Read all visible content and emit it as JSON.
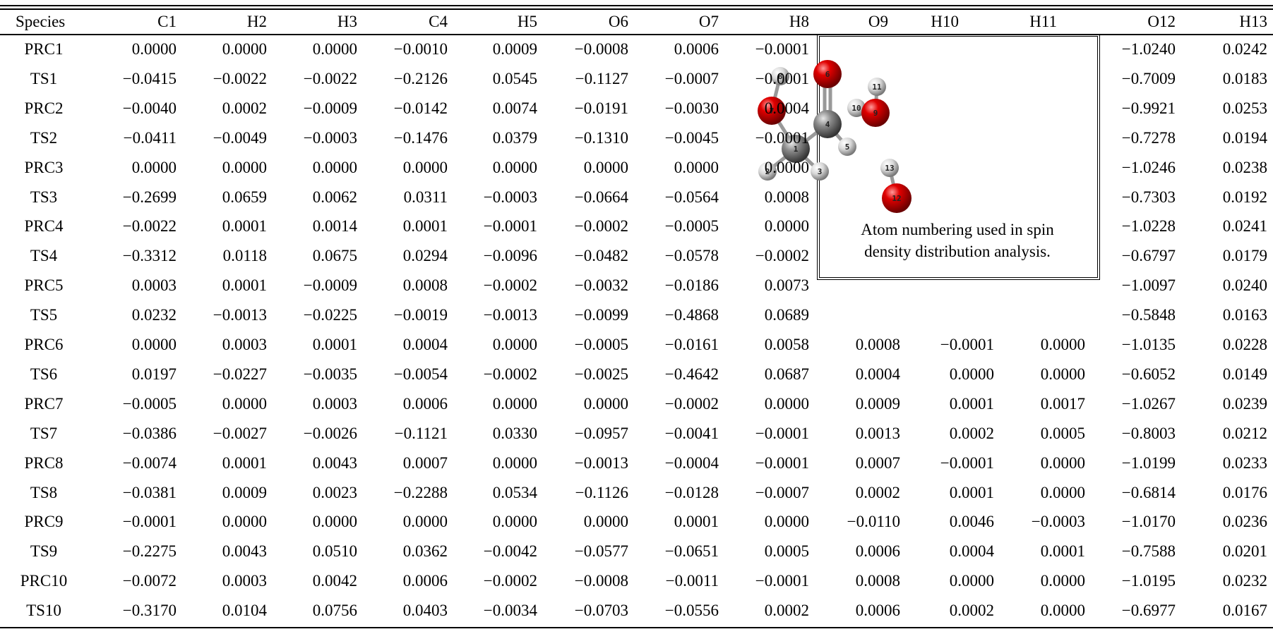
{
  "table": {
    "header": [
      "Species",
      "C1",
      "H2",
      "H3",
      "C4",
      "H5",
      "O6",
      "O7",
      "H8",
      "O9",
      "H10",
      "H11",
      "O12",
      "H13"
    ],
    "rows": [
      [
        "PRC1",
        "0.0000",
        "0.0000",
        "0.0000",
        "−0.0010",
        "0.0009",
        "−0.0008",
        "0.0006",
        "−0.0001",
        null,
        null,
        null,
        "−1.0240",
        "0.0242"
      ],
      [
        "TS1",
        "−0.0415",
        "−0.0022",
        "−0.0022",
        "−0.2126",
        "0.0545",
        "−0.1127",
        "−0.0007",
        "−0.0001",
        null,
        null,
        null,
        "−0.7009",
        "0.0183"
      ],
      [
        "PRC2",
        "−0.0040",
        "0.0002",
        "−0.0009",
        "−0.0142",
        "0.0074",
        "−0.0191",
        "−0.0030",
        "0.0004",
        null,
        null,
        null,
        "−0.9921",
        "0.0253"
      ],
      [
        "TS2",
        "−0.0411",
        "−0.0049",
        "−0.0003",
        "−0.1476",
        "0.0379",
        "−0.1310",
        "−0.0045",
        "−0.0001",
        null,
        null,
        null,
        "−0.7278",
        "0.0194"
      ],
      [
        "PRC3",
        "0.0000",
        "0.0000",
        "0.0000",
        "0.0000",
        "0.0000",
        "0.0000",
        "0.0000",
        "0.0000",
        null,
        null,
        null,
        "−1.0246",
        "0.0238"
      ],
      [
        "TS3",
        "−0.2699",
        "0.0659",
        "0.0062",
        "0.0311",
        "−0.0003",
        "−0.0664",
        "−0.0564",
        "0.0008",
        null,
        null,
        null,
        "−0.7303",
        "0.0192"
      ],
      [
        "PRC4",
        "−0.0022",
        "0.0001",
        "0.0014",
        "0.0001",
        "−0.0001",
        "−0.0002",
        "−0.0005",
        "0.0000",
        null,
        null,
        null,
        "−1.0228",
        "0.0241"
      ],
      [
        "TS4",
        "−0.3312",
        "0.0118",
        "0.0675",
        "0.0294",
        "−0.0096",
        "−0.0482",
        "−0.0578",
        "−0.0002",
        null,
        null,
        null,
        "−0.6797",
        "0.0179"
      ],
      [
        "PRC5",
        "0.0003",
        "0.0001",
        "−0.0009",
        "0.0008",
        "−0.0002",
        "−0.0032",
        "−0.0186",
        "0.0073",
        null,
        null,
        null,
        "−1.0097",
        "0.0240"
      ],
      [
        "TS5",
        "0.0232",
        "−0.0013",
        "−0.0225",
        "−0.0019",
        "−0.0013",
        "−0.0099",
        "−0.4868",
        "0.0689",
        null,
        null,
        null,
        "−0.5848",
        "0.0163"
      ],
      [
        "PRC6",
        "0.0000",
        "0.0003",
        "0.0001",
        "0.0004",
        "0.0000",
        "−0.0005",
        "−0.0161",
        "0.0058",
        "0.0008",
        "−0.0001",
        "0.0000",
        "−1.0135",
        "0.0228"
      ],
      [
        "TS6",
        "0.0197",
        "−0.0227",
        "−0.0035",
        "−0.0054",
        "−0.0002",
        "−0.0025",
        "−0.4642",
        "0.0687",
        "0.0004",
        "0.0000",
        "0.0000",
        "−0.6052",
        "0.0149"
      ],
      [
        "PRC7",
        "−0.0005",
        "0.0000",
        "0.0003",
        "0.0006",
        "0.0000",
        "0.0000",
        "−0.0002",
        "0.0000",
        "0.0009",
        "0.0001",
        "0.0017",
        "−1.0267",
        "0.0239"
      ],
      [
        "TS7",
        "−0.0386",
        "−0.0027",
        "−0.0026",
        "−0.1121",
        "0.0330",
        "−0.0957",
        "−0.0041",
        "−0.0001",
        "0.0013",
        "0.0002",
        "0.0005",
        "−0.8003",
        "0.0212"
      ],
      [
        "PRC8",
        "−0.0074",
        "0.0001",
        "0.0043",
        "0.0007",
        "0.0000",
        "−0.0013",
        "−0.0004",
        "−0.0001",
        "0.0007",
        "−0.0001",
        "0.0000",
        "−1.0199",
        "0.0233"
      ],
      [
        "TS8",
        "−0.0381",
        "0.0009",
        "0.0023",
        "−0.2288",
        "0.0534",
        "−0.1126",
        "−0.0128",
        "−0.0007",
        "0.0002",
        "0.0001",
        "0.0000",
        "−0.6814",
        "0.0176"
      ],
      [
        "PRC9",
        "−0.0001",
        "0.0000",
        "0.0000",
        "0.0000",
        "0.0000",
        "0.0000",
        "0.0001",
        "0.0000",
        "−0.0110",
        "0.0046",
        "−0.0003",
        "−1.0170",
        "0.0236"
      ],
      [
        "TS9",
        "−0.2275",
        "0.0043",
        "0.0510",
        "0.0362",
        "−0.0042",
        "−0.0577",
        "−0.0651",
        "0.0005",
        "0.0006",
        "0.0004",
        "0.0001",
        "−0.7588",
        "0.0201"
      ],
      [
        "PRC10",
        "−0.0072",
        "0.0003",
        "0.0042",
        "0.0006",
        "−0.0002",
        "−0.0008",
        "−0.0011",
        "−0.0001",
        "0.0008",
        "0.0000",
        "0.0000",
        "−1.0195",
        "0.0232"
      ],
      [
        "TS10",
        "−0.3170",
        "0.0104",
        "0.0756",
        "0.0403",
        "−0.0034",
        "−0.0703",
        "−0.0556",
        "0.0002",
        "0.0006",
        "0.0002",
        "0.0000",
        "−0.6977",
        "0.0167"
      ]
    ]
  },
  "figure": {
    "atom_labels": [
      "1",
      "2",
      "3",
      "4",
      "5",
      "6",
      "7",
      "8",
      "9",
      "10",
      "11",
      "12",
      "13"
    ],
    "caption": [
      "Atom numbering used in spin",
      "density distribution analysis."
    ]
  }
}
